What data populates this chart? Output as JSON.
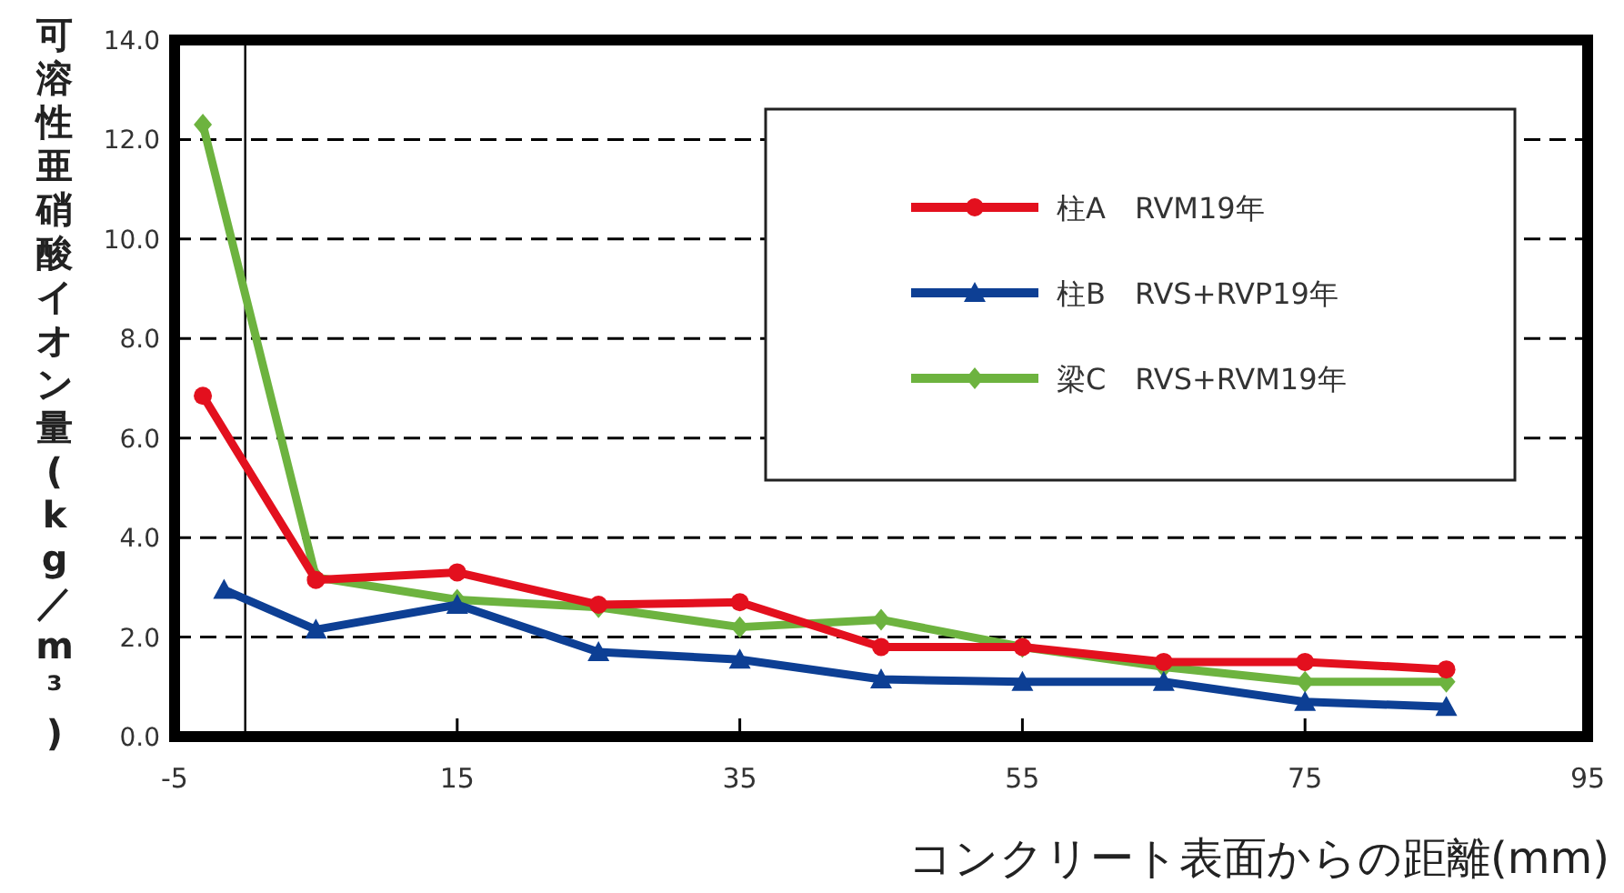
{
  "chart_data": {
    "type": "line",
    "xlabel": "コンクリート表面からの距離(mm)",
    "ylabel": "可溶性亜硝酸イオン量(kg／m³)",
    "xlim": [
      -5,
      95
    ],
    "xticks": [
      -5,
      15,
      35,
      55,
      75,
      95
    ],
    "ylim": [
      0,
      14
    ],
    "yticks": [
      {
        "value": 0,
        "label": "0.0"
      },
      {
        "value": 2,
        "label": "2.0"
      },
      {
        "value": 4,
        "label": "4.0"
      },
      {
        "value": 6,
        "label": "6.0"
      },
      {
        "value": 8,
        "label": "8.0"
      },
      {
        "value": 10,
        "label": "10.0"
      },
      {
        "value": 12,
        "label": "12.0"
      },
      {
        "value": 14,
        "label": "14.0"
      }
    ],
    "grid": "y",
    "legend": "top right",
    "line_style": "solid",
    "ref_lines": [
      {
        "axis": "x",
        "value": 0,
        "color": "#000000"
      }
    ],
    "series": [
      {
        "name": "柱A　RVM19年",
        "color": "#e3101e",
        "marker": "circle",
        "x": [
          -3,
          5,
          15,
          25,
          35,
          45,
          55,
          65,
          75,
          85
        ],
        "values": [
          6.85,
          3.15,
          3.3,
          2.65,
          2.7,
          1.8,
          1.8,
          1.5,
          1.5,
          1.35
        ]
      },
      {
        "name": "柱B　RVS+RVP19年",
        "color": "#0d3f94",
        "marker": "triangle",
        "x": [
          -1.5,
          5,
          15,
          25,
          35,
          45,
          55,
          65,
          75,
          85
        ],
        "values": [
          2.95,
          2.15,
          2.65,
          1.7,
          1.55,
          1.15,
          1.1,
          1.1,
          0.7,
          0.6
        ]
      },
      {
        "name": "梁C　RVS+RVM19年",
        "color": "#6db33f",
        "marker": "diamond",
        "x": [
          -3,
          5,
          15,
          25,
          35,
          45,
          55,
          65,
          75,
          85
        ],
        "values": [
          12.3,
          3.2,
          2.75,
          2.6,
          2.2,
          2.35,
          1.8,
          1.4,
          1.1,
          1.1
        ]
      }
    ]
  }
}
